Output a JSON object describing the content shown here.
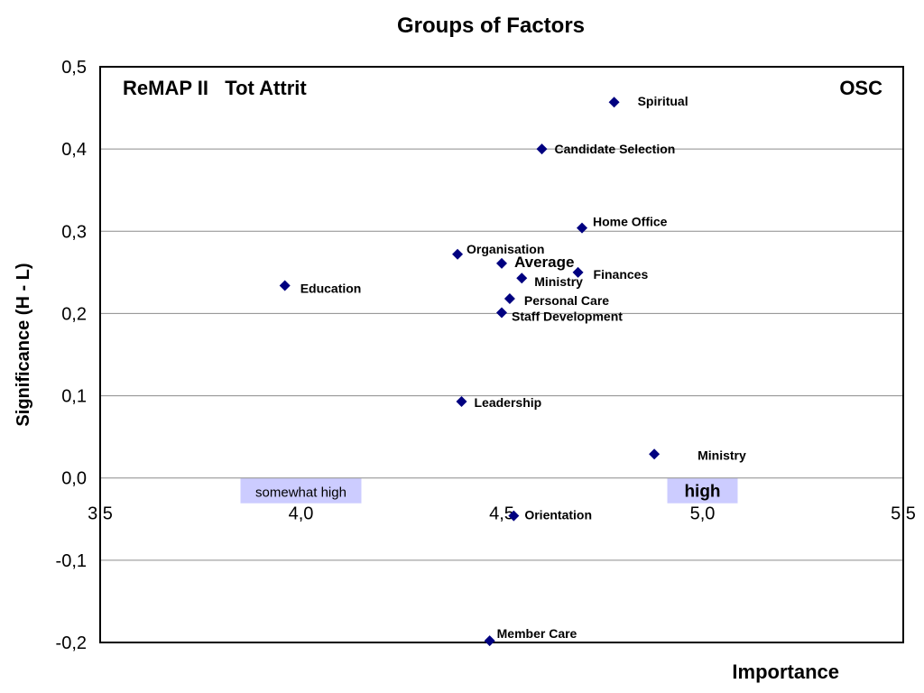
{
  "chart_data": {
    "type": "scatter",
    "title": "Groups of Factors",
    "xlabel": "Importance",
    "ylabel": "Significance (H - L)",
    "xlim": [
      3.5,
      5.5
    ],
    "ylim": [
      -0.2,
      0.5
    ],
    "x_ticks": [
      "3,5",
      "4,0",
      "4,5",
      "5,0",
      "5,5"
    ],
    "y_ticks": [
      "-0,2",
      "-0,1",
      "0,0",
      "0,1",
      "0,2",
      "0,3",
      "0,4",
      "0,5"
    ],
    "grid": "horizontal",
    "marker": "diamond",
    "marker_color": "#000080",
    "annotations": {
      "left": "ReMAP II   Tot Attrit",
      "right": "OSC"
    },
    "zones": [
      {
        "label": "somewhat high",
        "fill": "#ccccff"
      },
      {
        "label": "high",
        "fill": "#ccccff"
      }
    ],
    "points": [
      {
        "label": "Spiritual",
        "x": 4.78,
        "y": 0.457
      },
      {
        "label": "Candidate Selection",
        "x": 4.6,
        "y": 0.4
      },
      {
        "label": "Home Office",
        "x": 4.7,
        "y": 0.304
      },
      {
        "label": "Organisation",
        "x": 4.39,
        "y": 0.272
      },
      {
        "label": "Average",
        "x": 4.5,
        "y": 0.261
      },
      {
        "label": "Finances",
        "x": 4.69,
        "y": 0.25
      },
      {
        "label": "Ministry",
        "x": 4.55,
        "y": 0.243
      },
      {
        "label": "Education",
        "x": 3.96,
        "y": 0.234
      },
      {
        "label": "Personal Care",
        "x": 4.52,
        "y": 0.218
      },
      {
        "label": "Staff Development",
        "x": 4.5,
        "y": 0.201
      },
      {
        "label": "Leadership",
        "x": 4.4,
        "y": 0.093
      },
      {
        "label": "Ministry",
        "x": 4.88,
        "y": 0.029
      },
      {
        "label": "Orientation",
        "x": 4.53,
        "y": -0.046
      },
      {
        "label": "Member Care",
        "x": 4.47,
        "y": -0.198
      }
    ]
  }
}
